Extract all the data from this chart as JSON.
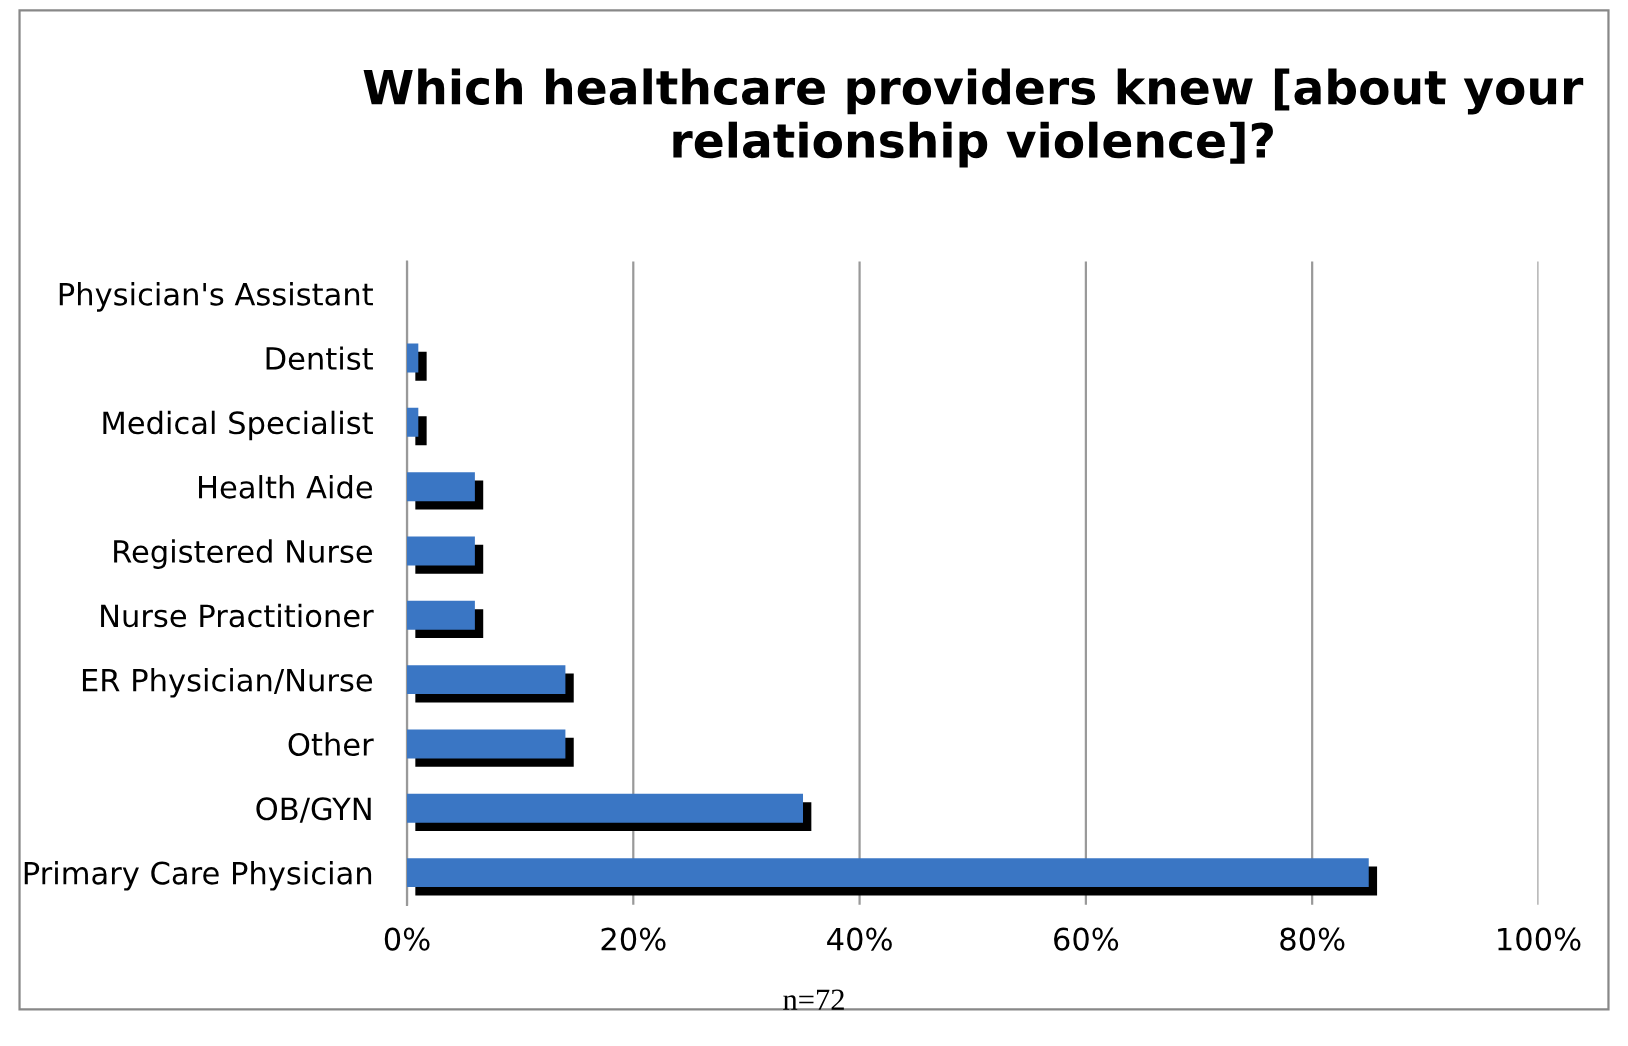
{
  "chart_data": {
    "type": "bar",
    "orientation": "horizontal",
    "title": "Which healthcare providers knew [about your relationship violence]?",
    "categories": [
      "Physician's Assistant",
      "Dentist",
      "Medical Specialist",
      "Health Aide",
      "Registered Nurse",
      "Nurse Practitioner",
      "ER Physician/Nurse",
      "Other",
      "OB/GYN",
      "Primary Care Physician"
    ],
    "values": [
      0,
      1,
      1,
      6,
      6,
      6,
      14,
      14,
      35,
      85
    ],
    "color": "#3a76c4",
    "xlim": [
      0,
      100
    ],
    "xticks": [
      {
        "value": 0,
        "label": "0%"
      },
      {
        "value": 20,
        "label": "20%"
      },
      {
        "value": 40,
        "label": "40%"
      },
      {
        "value": 60,
        "label": "60%"
      },
      {
        "value": 80,
        "label": "80%"
      },
      {
        "value": 100,
        "label": "100%"
      }
    ],
    "grid": "x",
    "annotations": [
      "n=72"
    ]
  }
}
